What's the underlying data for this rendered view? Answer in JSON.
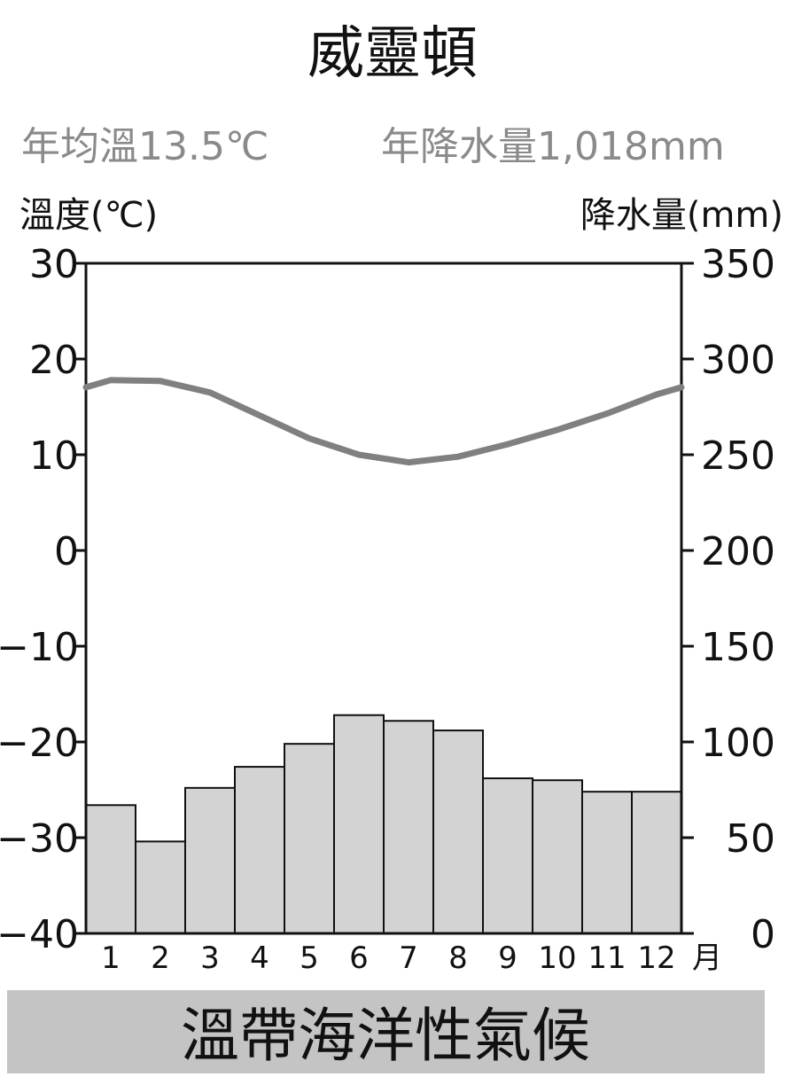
{
  "title": "威靈頓",
  "summary": {
    "annual_temp": "年均溫13.5℃",
    "annual_precip": "年降水量1,018mm"
  },
  "footer": "溫帶海洋性氣候",
  "colors": {
    "temperature_line": "#808080",
    "precip_bar": "#d3d3d3",
    "footer_band": "#c4c4c4",
    "summary_text": "#8a8a8a"
  },
  "chart_data": {
    "type": "bar+line",
    "categories": [
      "1",
      "2",
      "3",
      "4",
      "5",
      "6",
      "7",
      "8",
      "9",
      "10",
      "11",
      "12"
    ],
    "x_unit_label": "月",
    "temperature": {
      "axis_label": "溫度(℃)",
      "axis": "left",
      "ylim": [
        -40,
        30
      ],
      "ticks": [
        "30",
        "20",
        "10",
        "0",
        "−10",
        "−20",
        "−30",
        "−40"
      ],
      "tick_values": [
        30,
        20,
        10,
        0,
        -10,
        -20,
        -30,
        -40
      ],
      "values": [
        17.8,
        17.7,
        16.5,
        14.1,
        11.7,
        10.0,
        9.2,
        9.8,
        11.1,
        12.6,
        14.3,
        16.3
      ]
    },
    "precipitation": {
      "axis_label": "降水量(mm)",
      "axis": "right",
      "ylim": [
        0,
        350
      ],
      "ticks": [
        "350",
        "300",
        "250",
        "200",
        "150",
        "100",
        "50",
        "0"
      ],
      "tick_values": [
        350,
        300,
        250,
        200,
        150,
        100,
        50,
        0
      ],
      "values": [
        67,
        48,
        76,
        87,
        99,
        114,
        111,
        106,
        81,
        80,
        74,
        74
      ]
    },
    "grid": false
  }
}
